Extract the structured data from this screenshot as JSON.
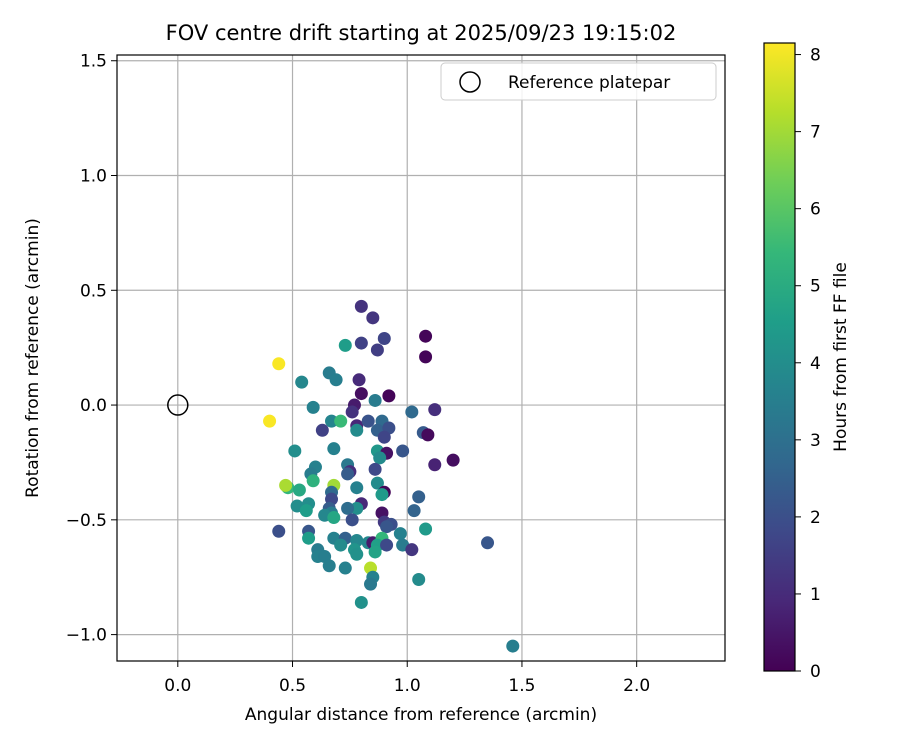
{
  "chart_data": {
    "type": "scatter",
    "title": "FOV centre drift starting at 2025/09/23 19:15:02",
    "xlabel": "Angular distance from reference (arcmin)",
    "ylabel": "Rotation from reference (arcmin)",
    "xlim": [
      -0.265,
      2.385
    ],
    "ylim": [
      -1.115,
      1.525
    ],
    "grid": true,
    "x_ticks": [
      0.0,
      0.5,
      1.0,
      1.5,
      2.0
    ],
    "x_tick_labels": [
      "0.0",
      "0.5",
      "1.0",
      "1.5",
      "2.0"
    ],
    "y_ticks": [
      -1.0,
      -0.5,
      0.0,
      0.5,
      1.0,
      1.5
    ],
    "y_tick_labels": [
      "−1.0",
      "−0.5",
      "0.0",
      "0.5",
      "1.0",
      "1.5"
    ],
    "legend": {
      "location": "upper right",
      "entries": [
        "Reference platepar"
      ]
    },
    "reference_point": {
      "x": 0.0,
      "y": 0.0,
      "label": "Reference platepar"
    },
    "colorbar": {
      "label": "Hours from first FF file",
      "range": [
        0,
        8.15
      ],
      "ticks": [
        0,
        1,
        2,
        3,
        4,
        5,
        6,
        7,
        8
      ],
      "tick_labels": [
        "0",
        "1",
        "2",
        "3",
        "4",
        "5",
        "6",
        "7",
        "8"
      ],
      "colormap": "viridis",
      "colormap_stops": [
        "#440154",
        "#482878",
        "#3e4989",
        "#31688e",
        "#26828e",
        "#1f9e89",
        "#35b779",
        "#6ece58",
        "#b5de2b",
        "#fde725"
      ]
    },
    "series": [
      {
        "name": "FOV centre drift",
        "points": [
          {
            "x": 0.8,
            "y": 0.43,
            "h": 1.2
          },
          {
            "x": 0.85,
            "y": 0.38,
            "h": 1.3
          },
          {
            "x": 0.9,
            "y": 0.29,
            "h": 1.7
          },
          {
            "x": 0.8,
            "y": 0.27,
            "h": 1.6
          },
          {
            "x": 0.87,
            "y": 0.24,
            "h": 1.5
          },
          {
            "x": 1.08,
            "y": 0.3,
            "h": 0.1
          },
          {
            "x": 1.08,
            "y": 0.21,
            "h": 0.1
          },
          {
            "x": 0.73,
            "y": 0.26,
            "h": 4.5
          },
          {
            "x": 0.44,
            "y": 0.18,
            "h": 8.1
          },
          {
            "x": 0.66,
            "y": 0.14,
            "h": 3.4
          },
          {
            "x": 0.69,
            "y": 0.11,
            "h": 3.5
          },
          {
            "x": 0.54,
            "y": 0.1,
            "h": 3.8
          },
          {
            "x": 0.79,
            "y": 0.11,
            "h": 1.0
          },
          {
            "x": 0.8,
            "y": 0.05,
            "h": 0.3
          },
          {
            "x": 0.92,
            "y": 0.04,
            "h": 0.1
          },
          {
            "x": 0.86,
            "y": 0.02,
            "h": 3.4
          },
          {
            "x": 0.77,
            "y": 0.0,
            "h": 0.6
          },
          {
            "x": 0.76,
            "y": -0.03,
            "h": 1.2
          },
          {
            "x": 0.59,
            "y": -0.01,
            "h": 3.6
          },
          {
            "x": 1.02,
            "y": -0.03,
            "h": 2.8
          },
          {
            "x": 1.12,
            "y": -0.02,
            "h": 1.1
          },
          {
            "x": 0.67,
            "y": -0.07,
            "h": 3.7
          },
          {
            "x": 0.71,
            "y": -0.07,
            "h": 5.5
          },
          {
            "x": 0.78,
            "y": -0.09,
            "h": 0.9
          },
          {
            "x": 0.83,
            "y": -0.07,
            "h": 2.1
          },
          {
            "x": 0.89,
            "y": -0.07,
            "h": 2.8
          },
          {
            "x": 0.4,
            "y": -0.07,
            "h": 8.1
          },
          {
            "x": 0.63,
            "y": -0.11,
            "h": 1.6
          },
          {
            "x": 0.78,
            "y": -0.11,
            "h": 3.9
          },
          {
            "x": 0.87,
            "y": -0.11,
            "h": 2.5
          },
          {
            "x": 0.92,
            "y": -0.1,
            "h": 2.0
          },
          {
            "x": 1.07,
            "y": -0.12,
            "h": 2.3
          },
          {
            "x": 1.09,
            "y": -0.13,
            "h": 0.2
          },
          {
            "x": 0.9,
            "y": -0.14,
            "h": 1.7
          },
          {
            "x": 0.68,
            "y": -0.19,
            "h": 3.6
          },
          {
            "x": 0.87,
            "y": -0.2,
            "h": 4.3
          },
          {
            "x": 0.98,
            "y": -0.2,
            "h": 2.2
          },
          {
            "x": 0.51,
            "y": -0.2,
            "h": 4.0
          },
          {
            "x": 0.91,
            "y": -0.21,
            "h": 0.4
          },
          {
            "x": 0.88,
            "y": -0.23,
            "h": 3.9
          },
          {
            "x": 1.2,
            "y": -0.24,
            "h": 0.3
          },
          {
            "x": 1.12,
            "y": -0.26,
            "h": 0.8
          },
          {
            "x": 0.74,
            "y": -0.26,
            "h": 3.3
          },
          {
            "x": 0.6,
            "y": -0.27,
            "h": 3.6
          },
          {
            "x": 0.86,
            "y": -0.28,
            "h": 1.8
          },
          {
            "x": 0.75,
            "y": -0.29,
            "h": 1.1
          },
          {
            "x": 0.58,
            "y": -0.3,
            "h": 3.4
          },
          {
            "x": 0.74,
            "y": -0.3,
            "h": 2.4
          },
          {
            "x": 0.59,
            "y": -0.33,
            "h": 5.2
          },
          {
            "x": 0.87,
            "y": -0.34,
            "h": 3.9
          },
          {
            "x": 0.78,
            "y": -0.36,
            "h": 3.6
          },
          {
            "x": 0.48,
            "y": -0.36,
            "h": 5.4
          },
          {
            "x": 0.68,
            "y": -0.35,
            "h": 7.0
          },
          {
            "x": 0.47,
            "y": -0.35,
            "h": 7.1
          },
          {
            "x": 0.53,
            "y": -0.37,
            "h": 4.9
          },
          {
            "x": 0.67,
            "y": -0.38,
            "h": 2.8
          },
          {
            "x": 0.9,
            "y": -0.38,
            "h": 0.1
          },
          {
            "x": 0.89,
            "y": -0.39,
            "h": 4.4
          },
          {
            "x": 1.05,
            "y": -0.4,
            "h": 2.5
          },
          {
            "x": 0.67,
            "y": -0.41,
            "h": 1.8
          },
          {
            "x": 0.57,
            "y": -0.43,
            "h": 4.0
          },
          {
            "x": 0.52,
            "y": -0.44,
            "h": 4.0
          },
          {
            "x": 0.8,
            "y": -0.43,
            "h": 0.9
          },
          {
            "x": 0.78,
            "y": -0.45,
            "h": 4.0
          },
          {
            "x": 0.66,
            "y": -0.45,
            "h": 2.4
          },
          {
            "x": 0.74,
            "y": -0.45,
            "h": 2.9
          },
          {
            "x": 0.56,
            "y": -0.46,
            "h": 4.5
          },
          {
            "x": 0.67,
            "y": -0.47,
            "h": 3.4
          },
          {
            "x": 0.89,
            "y": -0.47,
            "h": 0.4
          },
          {
            "x": 1.03,
            "y": -0.46,
            "h": 2.6
          },
          {
            "x": 0.64,
            "y": -0.48,
            "h": 3.8
          },
          {
            "x": 0.68,
            "y": -0.49,
            "h": 4.8
          },
          {
            "x": 0.76,
            "y": -0.5,
            "h": 2.0
          },
          {
            "x": 0.9,
            "y": -0.51,
            "h": 1.4
          },
          {
            "x": 0.93,
            "y": -0.52,
            "h": 2.0
          },
          {
            "x": 0.91,
            "y": -0.53,
            "h": 2.2
          },
          {
            "x": 1.08,
            "y": -0.54,
            "h": 4.4
          },
          {
            "x": 0.44,
            "y": -0.55,
            "h": 2.0
          },
          {
            "x": 0.57,
            "y": -0.55,
            "h": 2.2
          },
          {
            "x": 0.97,
            "y": -0.56,
            "h": 3.6
          },
          {
            "x": 0.57,
            "y": -0.58,
            "h": 4.5
          },
          {
            "x": 0.68,
            "y": -0.58,
            "h": 3.6
          },
          {
            "x": 0.73,
            "y": -0.58,
            "h": 2.5
          },
          {
            "x": 0.78,
            "y": -0.59,
            "h": 3.8
          },
          {
            "x": 0.83,
            "y": -0.6,
            "h": 3.8
          },
          {
            "x": 0.85,
            "y": -0.6,
            "h": 0.6
          },
          {
            "x": 0.89,
            "y": -0.58,
            "h": 5.4
          },
          {
            "x": 0.71,
            "y": -0.61,
            "h": 3.9
          },
          {
            "x": 0.87,
            "y": -0.61,
            "h": 4.6
          },
          {
            "x": 0.91,
            "y": -0.61,
            "h": 1.8
          },
          {
            "x": 0.98,
            "y": -0.61,
            "h": 3.4
          },
          {
            "x": 1.02,
            "y": -0.63,
            "h": 1.3
          },
          {
            "x": 0.61,
            "y": -0.63,
            "h": 3.4
          },
          {
            "x": 0.77,
            "y": -0.63,
            "h": 4.2
          },
          {
            "x": 0.86,
            "y": -0.64,
            "h": 4.7
          },
          {
            "x": 0.78,
            "y": -0.65,
            "h": 4.1
          },
          {
            "x": 0.61,
            "y": -0.66,
            "h": 3.6
          },
          {
            "x": 0.64,
            "y": -0.66,
            "h": 3.5
          },
          {
            "x": 0.66,
            "y": -0.7,
            "h": 3.5
          },
          {
            "x": 0.73,
            "y": -0.71,
            "h": 3.6
          },
          {
            "x": 0.84,
            "y": -0.71,
            "h": 7.3
          },
          {
            "x": 0.85,
            "y": -0.75,
            "h": 3.6
          },
          {
            "x": 1.05,
            "y": -0.76,
            "h": 3.9
          },
          {
            "x": 0.84,
            "y": -0.78,
            "h": 3.3
          },
          {
            "x": 0.8,
            "y": -0.86,
            "h": 4.1
          },
          {
            "x": 1.35,
            "y": -0.6,
            "h": 2.2
          },
          {
            "x": 1.46,
            "y": -1.05,
            "h": 3.5
          }
        ]
      }
    ]
  }
}
